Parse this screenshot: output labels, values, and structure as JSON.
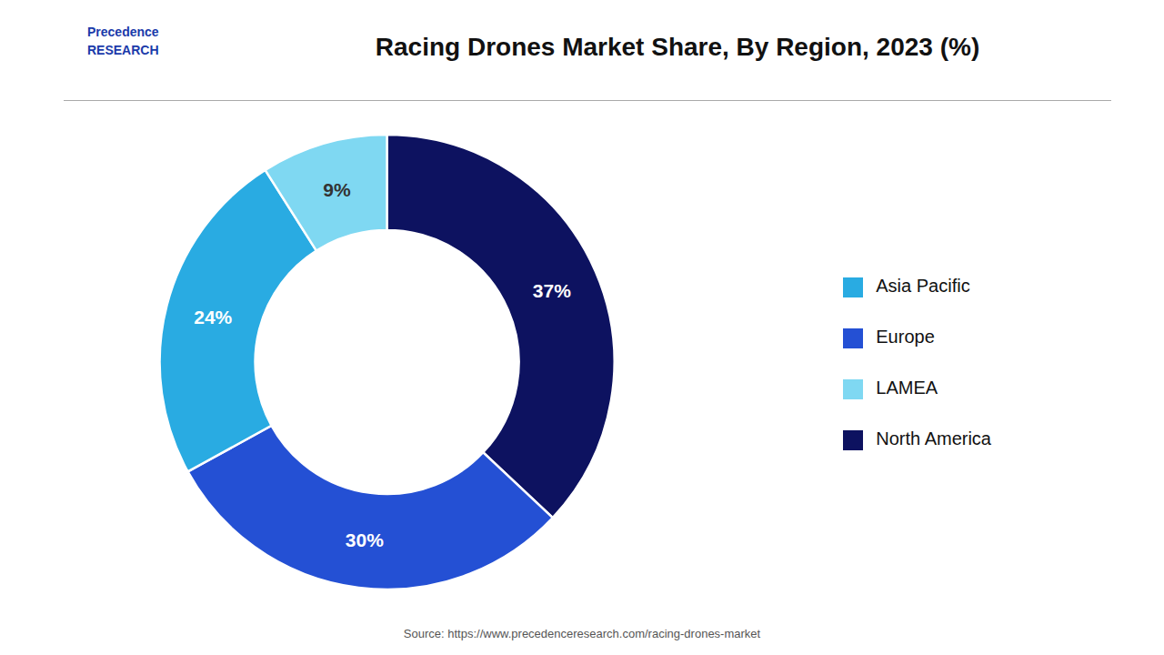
{
  "chart_data": {
    "type": "pie",
    "title": "Racing Drones Market Share, By Region, 2023 (%)",
    "categories": [
      "North America",
      "Europe",
      "Asia Pacific",
      "LAMEA"
    ],
    "values": [
      37,
      30,
      24,
      9
    ],
    "value_labels": [
      "37%",
      "30%",
      "24%",
      "9%"
    ],
    "colors": [
      "#0d1260",
      "#2450d4",
      "#29abe2",
      "#7fd8f2"
    ],
    "data_labels": true,
    "legend": "right",
    "annotations": [
      "Precedence\nRESEARCH",
      "Source: https://www.precedenceresearch.com/racing-drones-market"
    ]
  }
}
